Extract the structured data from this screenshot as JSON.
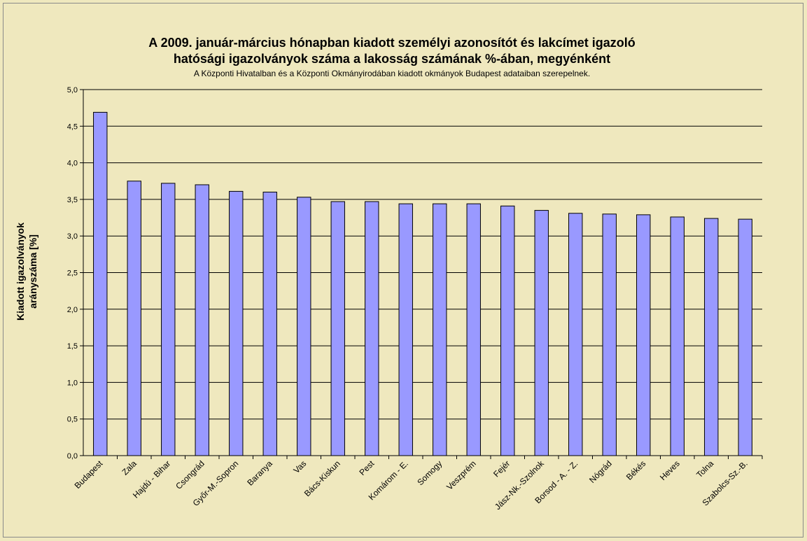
{
  "chart_data": {
    "type": "bar",
    "title_lines": [
      "A 2009. január-március hónapban kiadott személyi azonosítót és lakcímet igazoló",
      "hatósági igazolványok száma a lakosság  számának %-ában, megyénként"
    ],
    "subtitle": "A Központi Hivatalban és a Központi Okmányirodában kiadott okmányok Budapest adataiban szerepelnek.",
    "ylabel_lines": [
      "Kiadott igazolványok",
      "arányszáma [%]"
    ],
    "xlabel": "",
    "ylim": [
      0,
      5
    ],
    "yticks": [
      "0,0",
      "0,5",
      "1,0",
      "1,5",
      "2,0",
      "2,5",
      "3,0",
      "3,5",
      "4,0",
      "4,5",
      "5,0"
    ],
    "grid": true,
    "categories": [
      "Budapest",
      "Zala",
      "Hajdú - Bihar",
      "Csongrád",
      "Győr-M.-Sopron",
      "Baranya",
      "Vas",
      "Bács-Kiskun",
      "Pest",
      "Komárom - E.",
      "Somogy",
      "Veszprém",
      "Fejér",
      "Jász-Nk.-Szolnok",
      "Borsod - A. - Z.",
      "Nógrád",
      "Békés",
      "Heves",
      "Tolna",
      "Szabolcs-Sz.-B."
    ],
    "values": [
      4.69,
      3.75,
      3.72,
      3.7,
      3.61,
      3.6,
      3.53,
      3.47,
      3.47,
      3.44,
      3.44,
      3.44,
      3.41,
      3.35,
      3.31,
      3.3,
      3.29,
      3.26,
      3.24,
      3.23
    ],
    "colors": {
      "bar": "#9999ff",
      "bar_stroke": "#000000",
      "grid": "#000000",
      "background": "#efe8be"
    }
  }
}
